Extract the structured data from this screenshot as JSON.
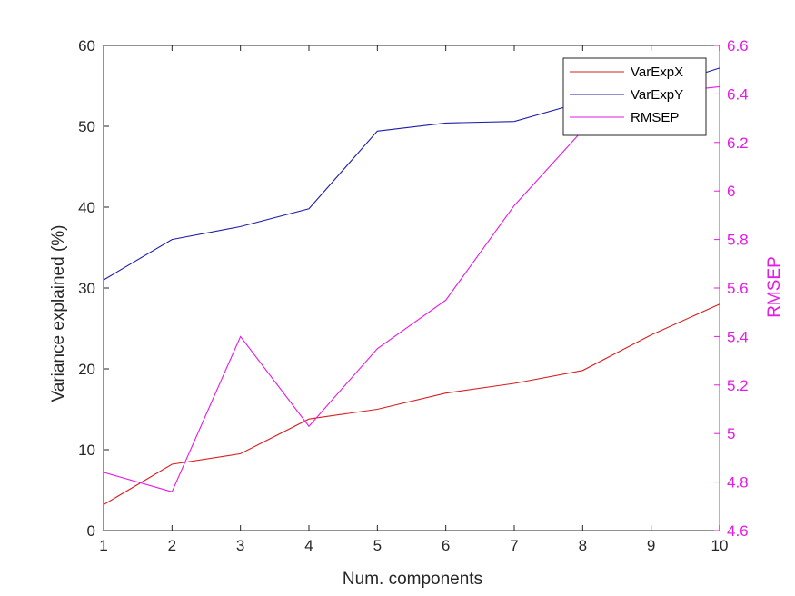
{
  "chart_data": {
    "type": "line",
    "title": "",
    "xlabel": "Num. components",
    "ylabel_left": "Variance explained (%)",
    "ylabel_right": "RMSEP",
    "x": [
      1,
      2,
      3,
      4,
      5,
      6,
      7,
      8,
      9,
      10
    ],
    "xlim": [
      1,
      10
    ],
    "xticks": [
      "1",
      "2",
      "3",
      "4",
      "5",
      "6",
      "7",
      "8",
      "9",
      "10"
    ],
    "ylim_left": [
      0,
      60
    ],
    "yticks_left": [
      "0",
      "10",
      "20",
      "30",
      "40",
      "50",
      "60"
    ],
    "ylim_right": [
      4.6,
      6.6
    ],
    "yticks_right": [
      "4.6",
      "4.8",
      "5",
      "5.2",
      "5.4",
      "5.6",
      "5.8",
      "6",
      "6.2",
      "6.4",
      "6.6"
    ],
    "grid": false,
    "legend_position": "top-right",
    "series": [
      {
        "name": "VarExpX",
        "axis": "left",
        "color": "#d62020",
        "values": [
          3.2,
          8.2,
          9.5,
          13.8,
          15.0,
          17.0,
          18.2,
          19.8,
          24.2,
          28.0
        ]
      },
      {
        "name": "VarExpY",
        "axis": "left",
        "color": "#1f1fa8",
        "values": [
          31.0,
          36.0,
          37.6,
          39.8,
          49.4,
          50.4,
          50.6,
          53.0,
          54.5,
          57.2
        ]
      },
      {
        "name": "RMSEP",
        "axis": "right",
        "color": "#e619e6",
        "values": [
          4.84,
          4.76,
          5.4,
          5.03,
          5.35,
          5.55,
          5.94,
          6.25,
          6.4,
          6.43
        ]
      }
    ],
    "colors": {
      "right_axis": "#e619e6",
      "left_axis": "#262626"
    }
  }
}
